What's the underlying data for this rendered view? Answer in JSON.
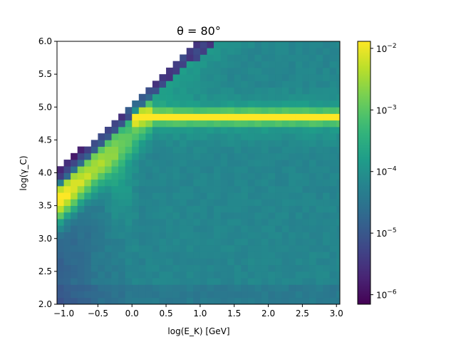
{
  "chart_data": {
    "type": "heatmap",
    "title": "θ = 80°",
    "xlabel": "log(E_K) [GeV]",
    "ylabel": "log(γ_C)",
    "xlim": [
      -1.1,
      3.05
    ],
    "ylim": [
      2.0,
      6.0
    ],
    "x_ticks": [
      -1.0,
      -0.5,
      0.0,
      0.5,
      1.0,
      1.5,
      2.0,
      2.5,
      3.0
    ],
    "x_tick_labels": [
      "−1.0",
      "−0.5",
      "0.0",
      "0.5",
      "1.0",
      "1.5",
      "2.0",
      "2.5",
      "3.0"
    ],
    "y_ticks": [
      2.0,
      2.5,
      3.0,
      3.5,
      4.0,
      4.5,
      5.0,
      5.5,
      6.0
    ],
    "y_tick_labels": [
      "2.0",
      "2.5",
      "3.0",
      "3.5",
      "4.0",
      "4.5",
      "5.0",
      "5.5",
      "6.0"
    ],
    "colorbar": {
      "scale": "log",
      "range": [
        7e-07,
        0.013
      ],
      "ticks": [
        1e-06,
        1e-05,
        0.0001,
        0.001,
        0.01
      ],
      "tick_labels": [
        {
          "base": "10",
          "exp": "−6"
        },
        {
          "base": "10",
          "exp": "−5"
        },
        {
          "base": "10",
          "exp": "−4"
        },
        {
          "base": "10",
          "exp": "−3"
        },
        {
          "base": "10",
          "exp": "−2"
        }
      ],
      "colormap": "viridis"
    },
    "grid": false,
    "bin_width_x": 0.1,
    "bin_width_y": 0.1,
    "ridge_y": 4.85,
    "ridge_onset_x": -0.05,
    "lower_edge_y_at_min_x": 3.9,
    "edge_slope": 0.95
  }
}
